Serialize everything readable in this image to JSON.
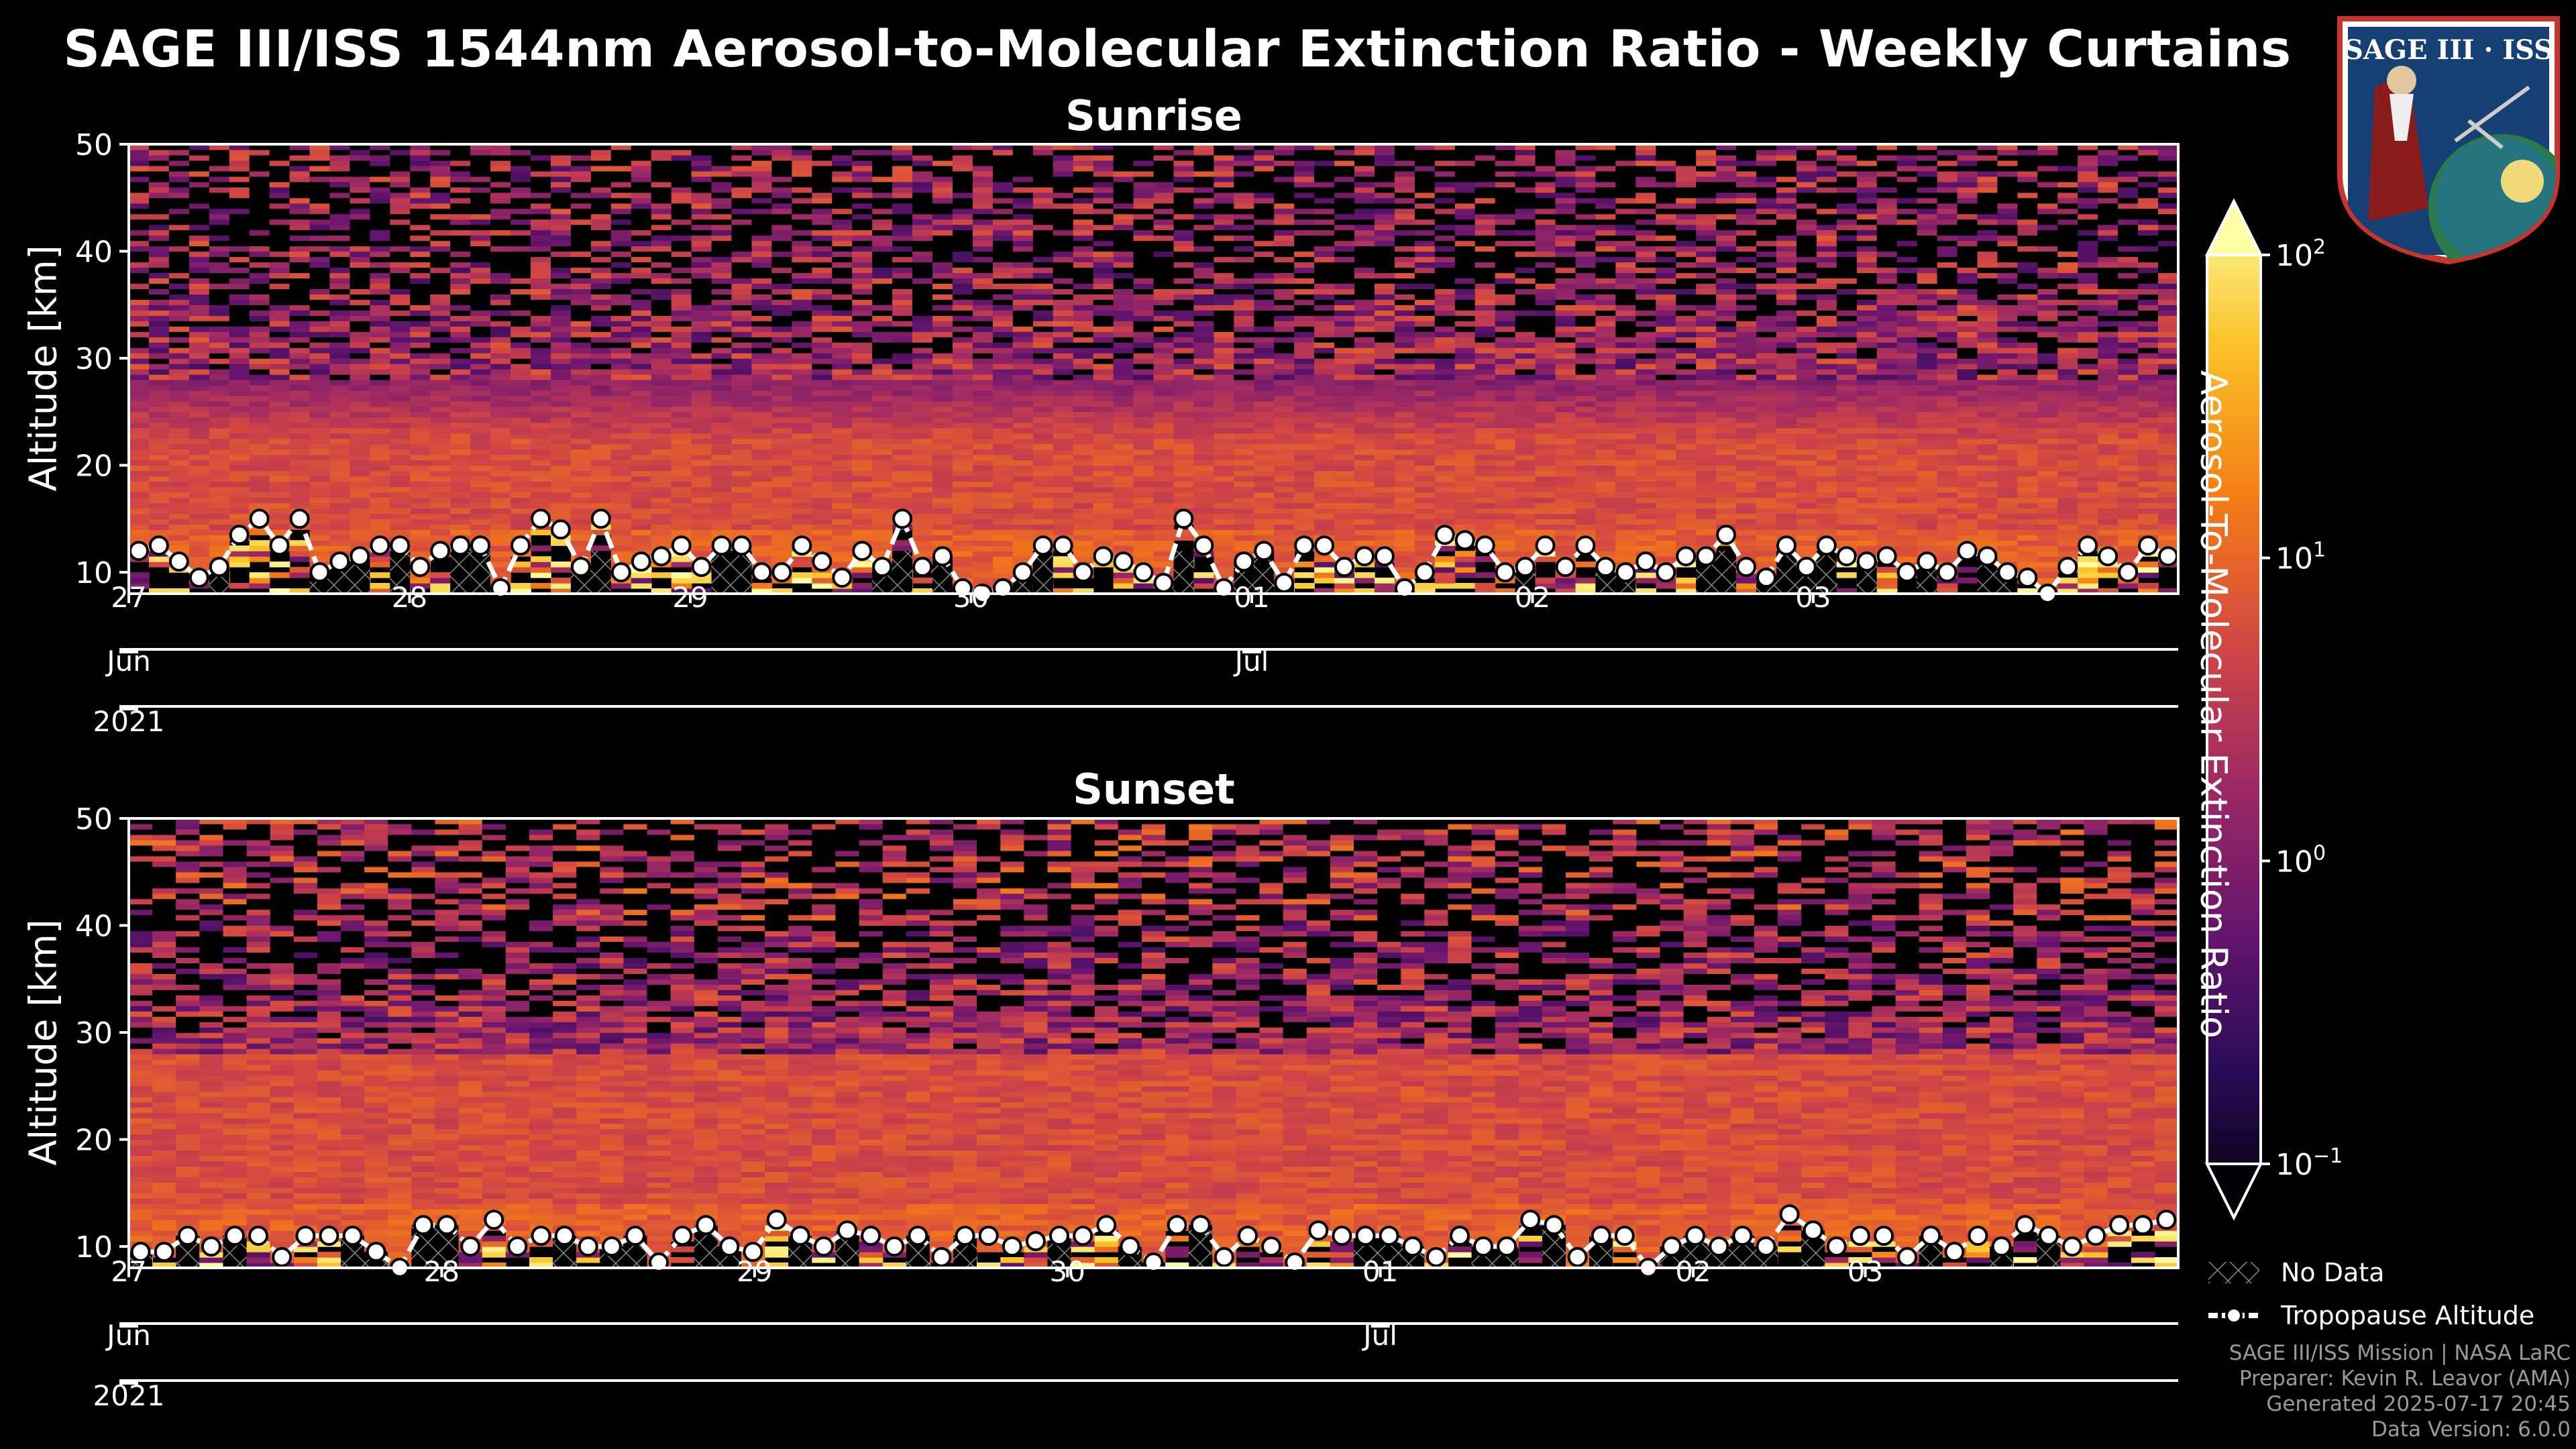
{
  "title": "SAGE III/ISS 1544nm Aerosol-to-Molecular Extinction Ratio - Weekly Curtains",
  "colorbar": {
    "label": "Aerosol-To-Molecular Extinction Ratio",
    "ticks": [
      {
        "base": "10",
        "exp": "2"
      },
      {
        "base": "10",
        "exp": "1"
      },
      {
        "base": "10",
        "exp": "0"
      },
      {
        "base": "10",
        "exp": "−1"
      }
    ],
    "colormap": [
      "#000004",
      "#280b54",
      "#65156e",
      "#9f2a63",
      "#d44842",
      "#f57d15",
      "#fac228",
      "#fcffa4"
    ],
    "range": [
      0.1,
      100
    ],
    "scale": "log"
  },
  "legend": {
    "no_data": "No Data",
    "tropopause": "Tropopause Altitude"
  },
  "credits": [
    "SAGE III/ISS Mission | NASA LaRC",
    "Preparer: Kevin R. Leavor (AMA)",
    "Generated 2025-07-17 20:45",
    "Data Version: 6.0.0"
  ],
  "logo": {
    "text": "SAGE III · ISS"
  },
  "chart_data": [
    {
      "type": "heatmap",
      "title": "Sunrise",
      "ylabel": "Altitude [km]",
      "ylim": [
        8,
        50
      ],
      "yticks": [
        10,
        20,
        30,
        40,
        50
      ],
      "xlim_days": [
        0,
        7.3
      ],
      "xtick_days": [
        0,
        1,
        2,
        3,
        4,
        5,
        6
      ],
      "xtick_labels": [
        "27",
        "28",
        "29",
        "30",
        "01",
        "02",
        "03"
      ],
      "month_labels": [
        {
          "day": 0,
          "label": "Jun"
        },
        {
          "day": 4,
          "label": "Jul"
        }
      ],
      "year_label": "2021",
      "seed": 7,
      "tropopause_km": [
        12,
        12.5,
        11,
        9.5,
        10.5,
        13.5,
        15,
        12.5,
        15,
        10,
        11,
        11.5,
        12.5,
        12.5,
        10.5,
        12,
        12.5,
        12.5,
        8.5,
        12.5,
        15,
        14,
        10.5,
        15,
        10,
        11,
        11.5,
        12.5,
        10.5,
        12.5,
        12.5,
        10,
        10,
        12.5,
        11,
        9.5,
        12,
        10.5,
        15,
        10.5,
        11.5,
        8.5,
        8,
        8.5,
        10,
        12.5,
        12.5,
        10,
        11.5,
        11,
        10,
        9,
        15,
        12.5,
        8.5,
        11,
        12,
        9,
        12.5,
        12.5,
        10.5,
        11.5,
        11.5,
        8.5,
        10,
        13.5,
        13,
        12.5,
        10,
        10.5,
        12.5,
        10.5,
        12.5,
        10.5,
        10,
        11,
        10,
        11.5,
        11.5,
        13.5,
        10.5,
        9.5,
        12.5,
        10.5,
        12.5,
        11.5,
        11,
        11.5,
        10,
        11,
        10,
        12,
        11.5,
        10,
        9.5,
        8,
        10.5,
        12.5,
        11.5,
        10,
        12.5,
        11.5
      ]
    },
    {
      "type": "heatmap",
      "title": "Sunset",
      "ylabel": "Altitude [km]",
      "ylim": [
        8,
        50
      ],
      "yticks": [
        10,
        20,
        30,
        40,
        50
      ],
      "xlim_days": [
        0,
        6.55
      ],
      "xtick_days": [
        0,
        1,
        2,
        3,
        4,
        5,
        5.55
      ],
      "xtick_labels": [
        "27",
        "28",
        "29",
        "30",
        "01",
        "02",
        "03"
      ],
      "month_labels": [
        {
          "day": 0,
          "label": "Jun"
        },
        {
          "day": 4,
          "label": "Jul"
        }
      ],
      "year_label": "2021",
      "seed": 13,
      "tropopause_km": [
        9.5,
        9.5,
        11,
        10,
        11,
        11,
        9,
        11,
        11,
        11,
        9.5,
        8,
        12,
        12,
        10,
        12.5,
        10,
        11,
        11,
        10,
        10,
        11,
        8.5,
        11,
        12,
        10,
        9.5,
        12.5,
        11,
        10,
        11.5,
        11,
        10,
        11,
        9,
        11,
        11,
        10,
        10.5,
        11,
        11,
        12,
        10,
        8.5,
        12,
        12,
        9,
        11,
        10,
        8.5,
        11.5,
        11,
        11,
        11,
        10,
        9,
        11,
        10,
        10,
        12.5,
        12,
        9,
        11,
        11,
        8,
        10,
        11,
        10,
        11,
        10,
        13,
        11.5,
        10,
        11,
        11,
        9,
        11,
        9.5,
        11,
        10,
        12,
        11,
        10,
        11,
        12,
        12,
        12.5
      ]
    }
  ]
}
